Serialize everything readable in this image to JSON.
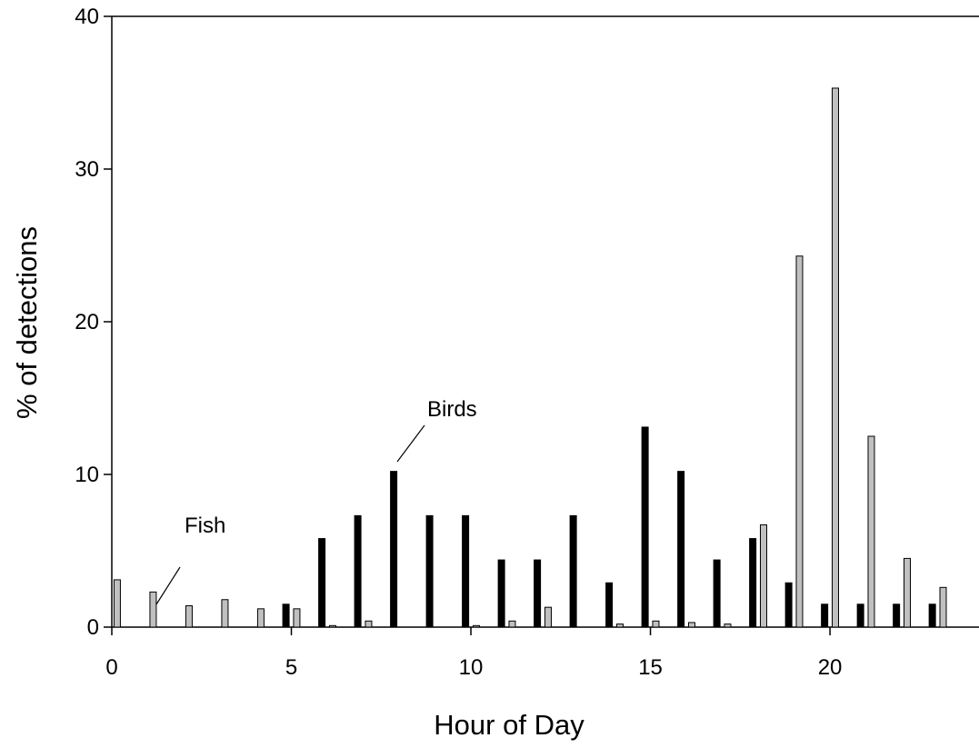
{
  "chart_data": {
    "type": "bar",
    "x": [
      0,
      1,
      2,
      3,
      4,
      5,
      6,
      7,
      8,
      9,
      10,
      11,
      12,
      13,
      14,
      15,
      16,
      17,
      18,
      19,
      20,
      21,
      22,
      23
    ],
    "series": [
      {
        "color": "#000000",
        "values": [
          0,
          0,
          0,
          0,
          0,
          1.5,
          5.8,
          7.3,
          10.2,
          7.3,
          7.3,
          4.4,
          4.4,
          7.3,
          2.9,
          13.1,
          10.2,
          4.4,
          5.8,
          2.9,
          1.5,
          1.5,
          1.5,
          1.5
        ]
      },
      {
        "color": "#c0c0c0",
        "values": [
          3.1,
          2.3,
          1.4,
          1.8,
          1.2,
          1.2,
          0.1,
          0.4,
          0,
          0,
          0.1,
          0.4,
          1.3,
          0,
          0.2,
          0.4,
          0.3,
          0.2,
          6.7,
          24.3,
          35.3,
          12.5,
          4.5,
          2.6
        ]
      }
    ],
    "xlabel": "Hour of Day",
    "ylabel": "% of detections",
    "xlim": [
      0,
      24.15
    ],
    "ylim": [
      0,
      40
    ],
    "xticks": [
      0,
      5,
      10,
      15,
      20
    ],
    "yticks": [
      0,
      10,
      20,
      30,
      40
    ],
    "annotations": [
      "Birds",
      "Fish"
    ]
  }
}
